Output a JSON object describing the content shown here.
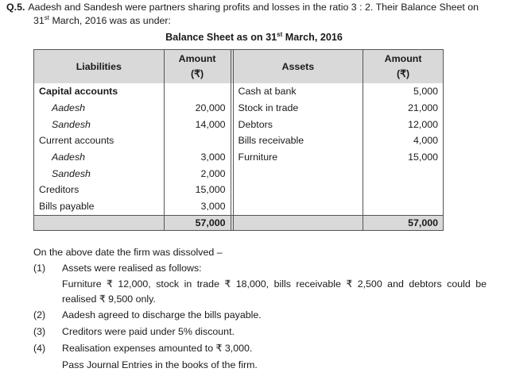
{
  "question": {
    "number": "Q.5.",
    "text_line1": "Aadesh and Sandesh were partners sharing profits and losses in the ratio 3 : 2. Their Balance Sheet on",
    "date_day": "31",
    "date_sup": "st",
    "text_line2": " March, 2016 was as under:"
  },
  "balance_sheet": {
    "title_pre": "Balance Sheet as on 31",
    "title_sup": "st",
    "title_post": " March, 2016",
    "headers": {
      "liabilities": "Liabilities",
      "amount1": "Amount",
      "currency1": "(₹)",
      "assets": "Assets",
      "amount2": "Amount",
      "currency2": "(₹)"
    },
    "rows": [
      {
        "liab": "Capital accounts",
        "liab_style": "bold",
        "lamt": "",
        "asset": "Cash at bank",
        "aamt": "5,000"
      },
      {
        "liab": "Aadesh",
        "liab_style": "ital",
        "lamt": "20,000",
        "asset": "Stock in trade",
        "aamt": "21,000"
      },
      {
        "liab": "Sandesh",
        "liab_style": "ital",
        "lamt": "14,000",
        "asset": "Debtors",
        "aamt": "12,000"
      },
      {
        "liab": "Current accounts",
        "liab_style": "",
        "lamt": "",
        "asset": "Bills receivable",
        "aamt": "4,000"
      },
      {
        "liab": "Aadesh",
        "liab_style": "ital",
        "lamt": "3,000",
        "asset": "Furniture",
        "aamt": "15,000"
      },
      {
        "liab": "Sandesh",
        "liab_style": "ital",
        "lamt": "2,000",
        "asset": "",
        "aamt": ""
      },
      {
        "liab": "Creditors",
        "liab_style": "",
        "lamt": "15,000",
        "asset": "",
        "aamt": ""
      },
      {
        "liab": "Bills payable",
        "liab_style": "",
        "lamt": "3,000",
        "asset": "",
        "aamt": ""
      }
    ],
    "total_liabilities": "57,000",
    "total_assets": "57,000"
  },
  "narrative": {
    "intro": "On the above date the firm was dissolved –",
    "items": [
      {
        "num": "(1)",
        "text": "Assets were realised as follows:"
      },
      {
        "num": "(2)",
        "text": "Aadesh agreed to discharge the bills payable."
      },
      {
        "num": "(3)",
        "text": "Creditors were paid under 5% discount."
      },
      {
        "num": "(4)",
        "text": "Realisation expenses amounted to ₹ 3,000."
      }
    ],
    "item1_detail": "Furniture ₹ 12,000, stock in trade ₹ 18,000, bills receivable ₹ 2,500 and debtors could be realised ₹ 9,500 only.",
    "closing": "Pass Journal Entries in the books of the firm."
  }
}
